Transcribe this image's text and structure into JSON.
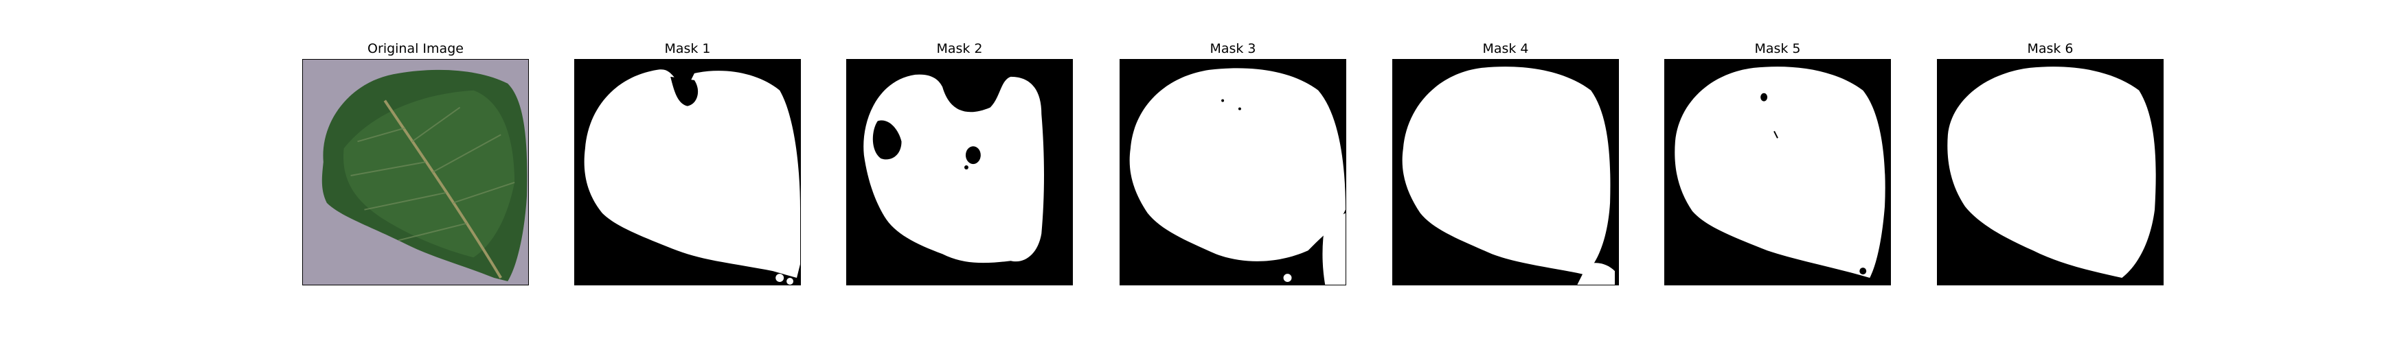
{
  "figure": {
    "panels": [
      {
        "id": "original",
        "title": "Original Image",
        "kind": "photo",
        "content": "leaf"
      },
      {
        "id": "mask1",
        "title": "Mask 1",
        "kind": "mask"
      },
      {
        "id": "mask2",
        "title": "Mask 2",
        "kind": "mask"
      },
      {
        "id": "mask3",
        "title": "Mask 3",
        "kind": "mask"
      },
      {
        "id": "mask4",
        "title": "Mask 4",
        "kind": "mask"
      },
      {
        "id": "mask5",
        "title": "Mask 5",
        "kind": "mask"
      },
      {
        "id": "mask6",
        "title": "Mask 6",
        "kind": "mask"
      }
    ],
    "colors": {
      "mask_foreground": "#ffffff",
      "mask_background": "#000000",
      "leaf_green": "#2f5a2c",
      "photo_background": "#a39cae"
    }
  }
}
